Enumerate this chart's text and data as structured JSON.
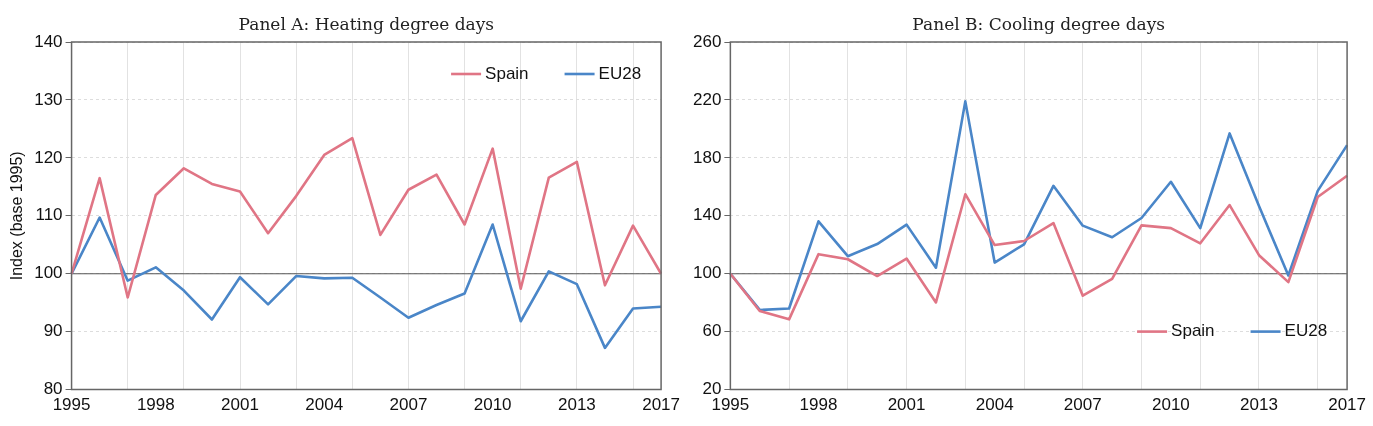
{
  "chart_data": [
    {
      "type": "line",
      "title": "Panel A: Heating degree days",
      "ylabel": "Index (base 1995)",
      "categories": [
        "1995",
        null,
        null,
        "1998",
        null,
        null,
        "2001",
        null,
        null,
        "2004",
        null,
        null,
        "2007",
        null,
        null,
        "2010",
        null,
        null,
        "2013",
        null,
        null,
        "2017"
      ],
      "series": [
        {
          "name": "Spain",
          "color": "#e07585",
          "values": [
            100,
            116.5,
            95.9,
            113.6,
            118.2,
            115.5,
            114.2,
            107.0,
            113.4,
            120.5,
            123.4,
            106.7,
            114.5,
            117.1,
            108.5,
            121.6,
            97.4,
            116.6,
            119.3,
            98.0,
            108.3,
            100
          ]
        },
        {
          "name": "EU28",
          "color": "#4a86c8",
          "values": [
            100,
            109.7,
            98.8,
            101.1,
            97.1,
            92.1,
            99.4,
            94.7,
            99.6,
            99.2,
            99.3,
            95.9,
            92.4,
            94.6,
            96.6,
            108.5,
            91.8,
            100.4,
            98.2,
            87.2,
            94.0,
            94.3
          ]
        }
      ],
      "ylim": [
        80,
        140
      ],
      "yticks": [
        80,
        90,
        100,
        110,
        120,
        130,
        140
      ],
      "grid": true,
      "legend": "top right",
      "marker": "none",
      "line_style": "solid",
      "ref_lines": [
        {
          "axis": "y",
          "value": 100,
          "color": "#555555"
        }
      ]
    },
    {
      "type": "line",
      "title": "Panel B: Cooling degree days",
      "categories": [
        "1995",
        null,
        null,
        "1998",
        null,
        null,
        "2001",
        null,
        null,
        "2004",
        null,
        null,
        "2007",
        null,
        null,
        "2010",
        null,
        null,
        "2013",
        null,
        null,
        "2017"
      ],
      "series": [
        {
          "name": "Spain",
          "color": "#e07585",
          "values": [
            100,
            74.3,
            68.5,
            113.5,
            110,
            98.4,
            110.5,
            80.2,
            154.9,
            119.8,
            122.6,
            135,
            84.8,
            96.5,
            133.4,
            131.5,
            121,
            147.4,
            112.8,
            94.2,
            153,
            167.7
          ]
        },
        {
          "name": "EU28",
          "color": "#4a86c8",
          "values": [
            100,
            75,
            76,
            136.2,
            112.1,
            120.5,
            133.9,
            104.2,
            219,
            107.7,
            120.3,
            160.7,
            133.2,
            125.2,
            138.5,
            163.5,
            131.5,
            196.9,
            146.7,
            98.8,
            157.2,
            188.8
          ]
        }
      ],
      "ylim": [
        20,
        260
      ],
      "yticks": [
        20,
        60,
        100,
        140,
        180,
        220,
        260
      ],
      "grid": true,
      "legend": "bottom right",
      "marker": "none",
      "line_style": "solid",
      "ref_lines": [
        {
          "axis": "y",
          "value": 100,
          "color": "#555555"
        }
      ]
    }
  ]
}
